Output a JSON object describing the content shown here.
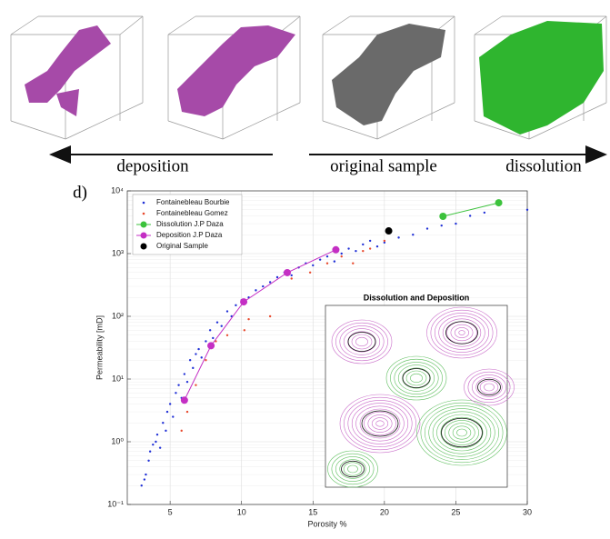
{
  "figure": {
    "arrow_labels": [
      "deposition",
      "original sample",
      "dissolution"
    ],
    "panel_label": "d)",
    "inset_title": "Dissolution and Deposition"
  },
  "chart_data": {
    "type": "scatter",
    "x_label": "Porosity %",
    "y_label": "Permeability [mD]",
    "xlim": [
      2,
      30
    ],
    "xticks": [
      5,
      10,
      15,
      20,
      25,
      30
    ],
    "ylim": [
      0.1,
      10000
    ],
    "log_y": true,
    "yticks": [
      {
        "value": 0.1,
        "label": "10⁻¹"
      },
      {
        "value": 1,
        "label": "10⁰"
      },
      {
        "value": 10,
        "label": "10¹"
      },
      {
        "value": 100,
        "label": "10²"
      },
      {
        "value": 1000,
        "label": "10³"
      },
      {
        "value": 10000,
        "label": "10⁴"
      }
    ],
    "grid": true,
    "legend": "top-left",
    "series": [
      {
        "name": "Fontainebleau Bourbie",
        "color": "#1f2fd6",
        "marker": "dot",
        "line": false,
        "x": [
          3,
          3.2,
          3.3,
          3.5,
          3.6,
          3.8,
          4,
          4.1,
          4.3,
          4.5,
          4.7,
          4.8,
          5,
          5.2,
          5.4,
          5.6,
          5.8,
          6,
          6.2,
          6.4,
          6.6,
          6.8,
          7,
          7.2,
          7.5,
          7.8,
          8,
          8.3,
          8.6,
          9,
          9.3,
          9.6,
          10,
          10.5,
          11,
          11.5,
          12,
          12.5,
          13,
          13.5,
          14,
          14.5,
          15,
          15.5,
          16,
          16.5,
          17,
          17.5,
          18,
          18.5,
          19,
          19.5,
          20,
          21,
          22,
          23,
          24,
          25,
          26,
          27,
          30
        ],
        "values": [
          0.2,
          0.25,
          0.3,
          0.5,
          0.7,
          0.9,
          1.0,
          1.3,
          0.8,
          2,
          1.5,
          3,
          4,
          2.5,
          6,
          8,
          5,
          12,
          9,
          20,
          15,
          25,
          30,
          22,
          40,
          60,
          45,
          80,
          70,
          120,
          100,
          150,
          180,
          200,
          260,
          300,
          350,
          420,
          500,
          450,
          600,
          700,
          650,
          800,
          900,
          750,
          1000,
          1200,
          1100,
          1400,
          1600,
          1300,
          1500,
          1800,
          2000,
          2500,
          2800,
          3000,
          4000,
          4500,
          5000
        ]
      },
      {
        "name": "Fontainebleau Gomez",
        "color": "#e8482c",
        "marker": "dot",
        "line": false,
        "x": [
          5.8,
          6.2,
          6.8,
          7.5,
          8.2,
          9,
          10.2,
          10.5,
          12,
          13.5,
          14.8,
          16,
          17,
          17.8,
          18.5,
          19,
          20
        ],
        "values": [
          1.5,
          3,
          8,
          20,
          40,
          50,
          60,
          90,
          100,
          400,
          500,
          700,
          900,
          700,
          1100,
          1200,
          1600
        ]
      },
      {
        "name": "Dissolution J.P Daza",
        "color": "#3cc23c",
        "marker": "circle",
        "line": true,
        "x": [
          24.1,
          28.0
        ],
        "values": [
          3930,
          6460
        ]
      },
      {
        "name": "Deposition J.P Daza",
        "color": "#c42fc4",
        "marker": "circle",
        "line": true,
        "x": [
          6.0,
          7.86,
          10.15,
          13.2,
          16.6
        ],
        "values": [
          4.6,
          34,
          170,
          497,
          1150
        ]
      },
      {
        "name": "Original Sample",
        "color": "#000000",
        "marker": "circle",
        "line": false,
        "x": [
          20.3
        ],
        "values": [
          2300
        ]
      }
    ]
  }
}
